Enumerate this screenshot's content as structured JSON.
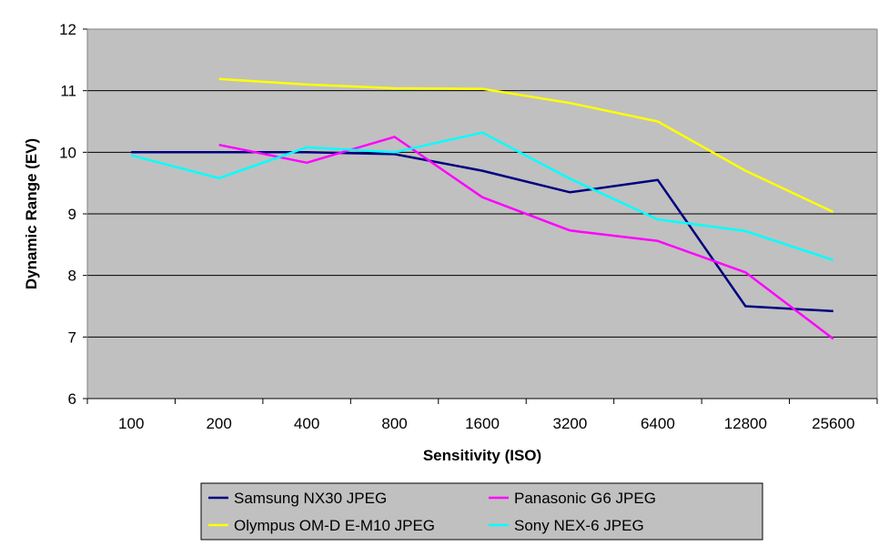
{
  "chart_data": {
    "type": "line",
    "title": "",
    "xlabel": "Sensitivity (ISO)",
    "ylabel": "Dynamic Range (EV)",
    "categories": [
      "100",
      "200",
      "400",
      "800",
      "1600",
      "3200",
      "6400",
      "12800",
      "25600"
    ],
    "ylim": [
      6,
      12
    ],
    "yticks": [
      "6",
      "7",
      "8",
      "9",
      "10",
      "11",
      "12"
    ],
    "grid": true,
    "legend_position": "bottom",
    "plot_background": "#c0c0c0",
    "series": [
      {
        "name": "Samsung NX30 JPEG",
        "color": "#000080",
        "values": [
          10.0,
          10.0,
          10.0,
          9.97,
          9.7,
          9.35,
          9.55,
          7.5,
          7.42
        ]
      },
      {
        "name": "Panasonic G6 JPEG",
        "color": "#ff00ff",
        "values": [
          null,
          10.12,
          9.83,
          10.25,
          9.27,
          8.73,
          8.56,
          8.05,
          6.97
        ]
      },
      {
        "name": "Olympus OM-D E-M10 JPEG",
        "color": "#ffff00",
        "values": [
          null,
          11.19,
          11.1,
          11.04,
          11.03,
          10.8,
          10.5,
          9.7,
          9.03
        ]
      },
      {
        "name": "Sony NEX-6 JPEG",
        "color": "#00ffff",
        "values": [
          9.95,
          9.58,
          10.08,
          10.0,
          10.32,
          9.57,
          8.91,
          8.72,
          8.25
        ]
      }
    ]
  }
}
